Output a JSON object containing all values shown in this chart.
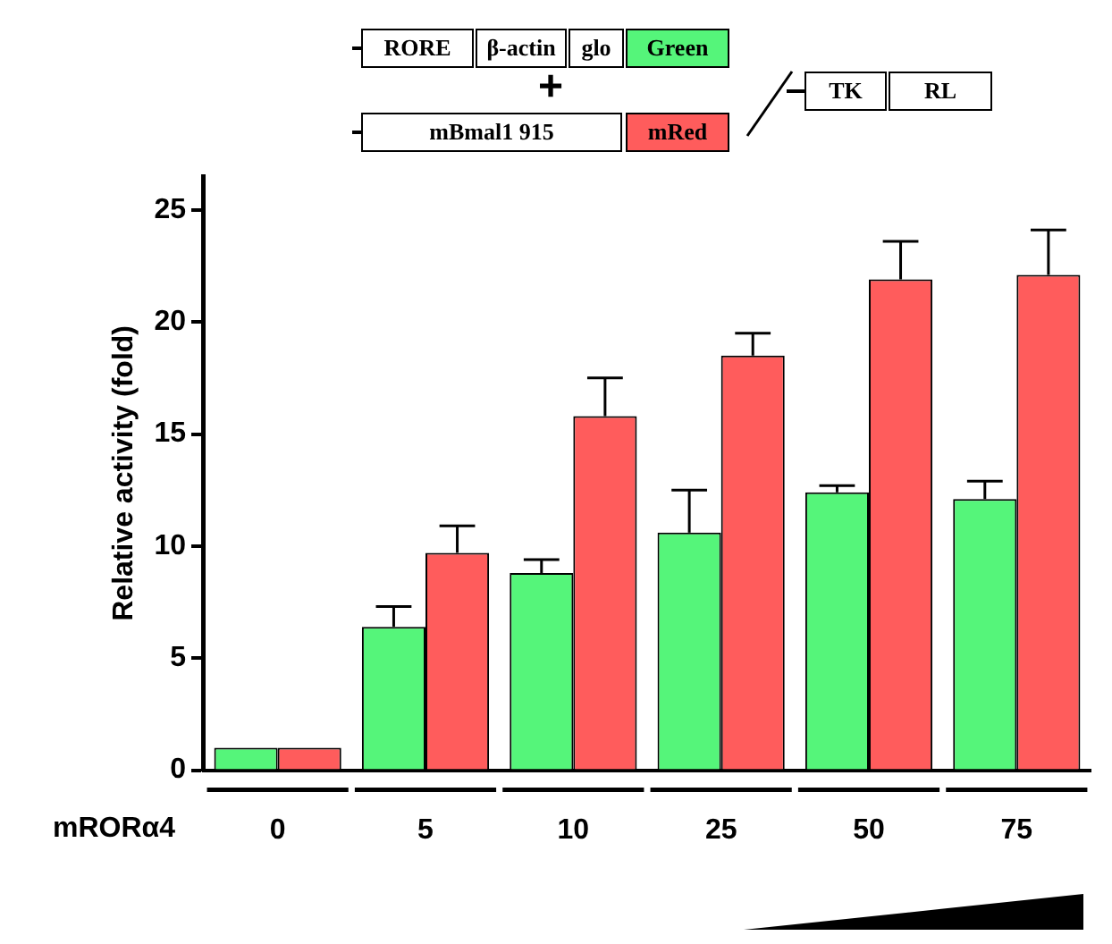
{
  "chart_data": {
    "type": "bar",
    "categories": [
      "0",
      "5",
      "10",
      "25",
      "50",
      "75"
    ],
    "xlabel": "mRORα4",
    "ylabel": "Relative activity (fold)",
    "series": [
      {
        "name": "Green",
        "color": "#55f57a",
        "values": [
          1.0,
          6.4,
          8.8,
          10.6,
          12.4,
          12.1
        ],
        "errors": [
          null,
          [
            6.4,
            7.3
          ],
          [
            8.8,
            9.4
          ],
          [
            10.6,
            12.5
          ],
          [
            12.4,
            12.7
          ],
          [
            12.1,
            12.9
          ]
        ]
      },
      {
        "name": "mRed",
        "color": "#ff5c5c",
        "values": [
          1.0,
          9.7,
          15.8,
          18.5,
          21.9,
          22.1
        ],
        "errors": [
          null,
          [
            9.7,
            10.9
          ],
          [
            15.8,
            17.5
          ],
          [
            18.5,
            19.5
          ],
          [
            21.9,
            23.6
          ],
          [
            22.1,
            24.1
          ]
        ]
      }
    ],
    "ylim": [
      0,
      26.5
    ],
    "yticks": [
      0,
      5,
      10,
      15,
      20,
      25
    ],
    "grid": false,
    "legend": "top",
    "annotations": [
      "RORE",
      "β-actin",
      "glo",
      "+",
      "mBmal1 915",
      "TK",
      "RL"
    ]
  }
}
